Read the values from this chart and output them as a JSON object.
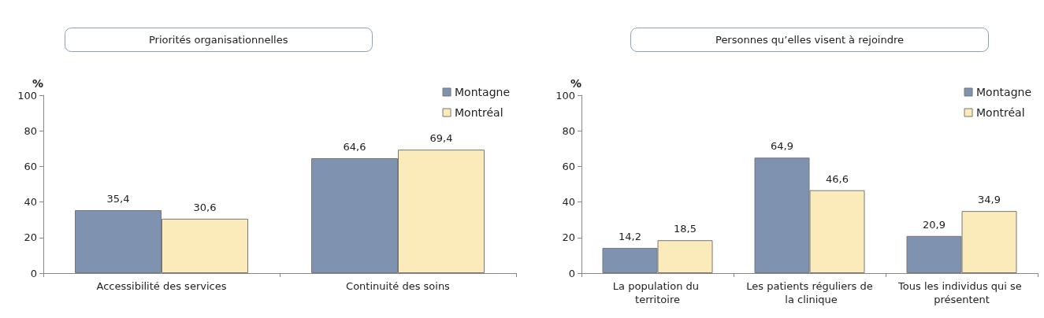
{
  "chart_data": [
    {
      "type": "bar",
      "title": "Priorités organisationnelles",
      "ylabel": "%",
      "categories": [
        "Accessibilité des services",
        "Continuité des soins"
      ],
      "series": [
        {
          "name": "Montagne",
          "color": "#7f93b0",
          "values": [
            35.4,
            64.6
          ],
          "value_labels": [
            "35,4",
            "64,6"
          ]
        },
        {
          "name": "Montréal",
          "color": "#fbebbb",
          "values": [
            30.6,
            69.4
          ],
          "value_labels": [
            "30,6",
            "69,4"
          ]
        }
      ],
      "ylim": [
        0,
        100
      ],
      "yticks": [
        0,
        20,
        40,
        60,
        80,
        100
      ],
      "grid": false,
      "legend": "top right"
    },
    {
      "type": "bar",
      "title": "Personnes qu’elles visent à rejoindre",
      "ylabel": "%",
      "categories": [
        "La population du territoire",
        "Les patients réguliers de la clinique",
        "Tous les individus qui se présentent"
      ],
      "series": [
        {
          "name": "Montagne",
          "color": "#7f93b0",
          "values": [
            14.2,
            64.9,
            20.9
          ],
          "value_labels": [
            "14,2",
            "64,9",
            "20,9"
          ]
        },
        {
          "name": "Montréal",
          "color": "#fbebbb",
          "values": [
            18.5,
            46.6,
            34.9
          ],
          "value_labels": [
            "18,5",
            "46,6",
            "34,9"
          ]
        }
      ],
      "ylim": [
        0,
        100
      ],
      "yticks": [
        0,
        20,
        40,
        60,
        80,
        100
      ],
      "grid": false,
      "legend": "top right"
    }
  ]
}
